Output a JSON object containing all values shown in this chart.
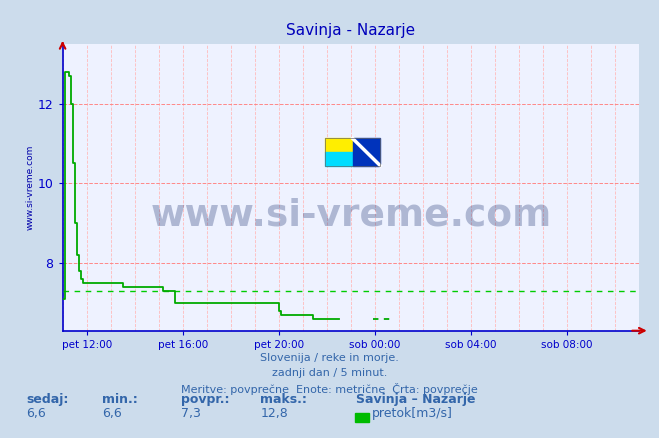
{
  "title": "Savinja - Nazarje",
  "bg_color": "#ccdcec",
  "plot_bg_color": "#eef2ff",
  "line_color": "#00aa00",
  "avg_line_color": "#00cc00",
  "grid_color_h": "#ff8888",
  "grid_color_v": "#ffbbbb",
  "axis_color": "#0000cc",
  "title_color": "#0000bb",
  "watermark_text": "www.si-vreme.com",
  "watermark_color": "#1a3070",
  "watermark_alpha": 0.3,
  "ylabel_text": "www.si-vreme.com",
  "ylabel_color": "#0000aa",
  "footer_lines": [
    "Slovenija / reke in morje.",
    "zadnji dan / 5 minut.",
    "Meritve: povprečne  Enote: metrične  Črta: povprečje"
  ],
  "footer_color": "#3366aa",
  "stats_labels": [
    "sedaj:",
    "min.:",
    "povpr.:",
    "maks.:"
  ],
  "stats_values": [
    "6,6",
    "6,6",
    "7,3",
    "12,8"
  ],
  "legend_station": "Savinja – Nazarje",
  "legend_label": "pretok[m3/s]",
  "legend_color": "#00bb00",
  "xlim": [
    0,
    288
  ],
  "ylim": [
    6.3,
    13.5
  ],
  "yticks": [
    8,
    10,
    12
  ],
  "xtick_positions": [
    12,
    60,
    108,
    156,
    204,
    252
  ],
  "xtick_labels": [
    "pet 12:00",
    "pet 16:00",
    "pet 20:00",
    "sob 00:00",
    "sob 04:00",
    "sob 08:00"
  ],
  "avg_value": 7.3,
  "arrow_color": "#cc0000"
}
